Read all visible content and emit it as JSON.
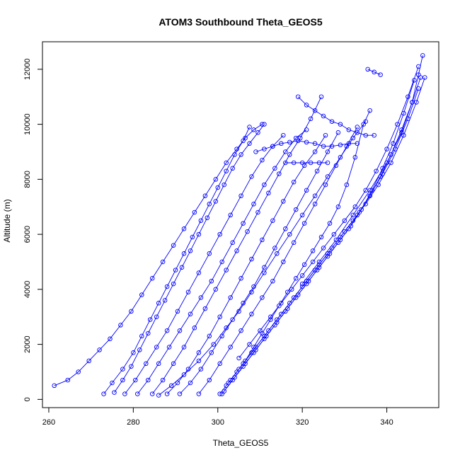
{
  "chart_data": {
    "type": "scatter",
    "title": "ATOM3 Southbound Theta_GEOS5",
    "xlabel": "Theta_GEOS5",
    "ylabel": "Altitude (m)",
    "xlim": [
      258.5,
      352.3
    ],
    "ylim": [
      -300,
      13000
    ],
    "xticks": [
      260,
      280,
      300,
      320,
      340
    ],
    "yticks": [
      0,
      2000,
      4000,
      6000,
      8000,
      10000,
      12000
    ],
    "grid": false,
    "legend": "none",
    "marker": "open-circle",
    "connect_points": true,
    "color": "#0000ff",
    "series": [
      {
        "x": [
          261.3,
          264.5,
          267.0,
          269.5,
          272.0,
          274.5,
          277.0,
          279.5,
          282.0,
          284.5,
          287.0,
          289.5,
          292.0,
          294.5,
          297.0,
          299.5,
          302.0,
          304.5,
          306.5,
          308.5,
          310.5
        ],
        "y": [
          500,
          700,
          1000,
          1400,
          1800,
          2200,
          2700,
          3200,
          3800,
          4400,
          5000,
          5600,
          6200,
          6800,
          7400,
          8000,
          8600,
          9100,
          9500,
          9800,
          10000
        ]
      },
      {
        "x": [
          273.0,
          275.0,
          277.5,
          280.0,
          282.0,
          284.0,
          286.0,
          288.0,
          290.0,
          292.0,
          294.0,
          296.0,
          298.0,
          300.0,
          302.0,
          304.0,
          306.0,
          307.5
        ],
        "y": [
          200,
          600,
          1100,
          1700,
          2300,
          2900,
          3500,
          4100,
          4700,
          5300,
          5900,
          6500,
          7100,
          7700,
          8300,
          8900,
          9400,
          9900
        ]
      },
      {
        "x": [
          275.5,
          277.5,
          279.5,
          281.5,
          283.5,
          285.5,
          287.5,
          289.5,
          291.5,
          293.5,
          295.5,
          297.5,
          299.5,
          301.5,
          303.5,
          305.5,
          307.5,
          309.5,
          311.0
        ],
        "y": [
          250,
          700,
          1200,
          1800,
          2400,
          3000,
          3600,
          4200,
          4800,
          5400,
          6000,
          6600,
          7200,
          7800,
          8400,
          8900,
          9300,
          9700,
          10000
        ]
      },
      {
        "x": [
          278.0,
          280.5,
          283.0,
          285.5,
          288.0,
          290.5,
          293.0,
          295.5,
          298.0,
          300.5,
          303.0,
          305.5,
          308.0,
          310.5,
          313.0,
          315.5
        ],
        "y": [
          200,
          700,
          1300,
          1900,
          2500,
          3200,
          3900,
          4600,
          5300,
          6000,
          6700,
          7400,
          8100,
          8700,
          9200,
          9600
        ]
      },
      {
        "x": [
          281.0,
          283.5,
          286.0,
          288.5,
          291.0,
          293.5,
          296.0,
          298.5,
          301.0,
          303.5,
          306.0,
          308.5,
          311.0,
          313.5,
          316.0,
          318.5,
          321.0
        ],
        "y": [
          200,
          700,
          1300,
          1900,
          2500,
          3100,
          3700,
          4300,
          5000,
          5700,
          6400,
          7100,
          7800,
          8400,
          9000,
          9500,
          9800
        ]
      },
      {
        "x": [
          284.5,
          287.0,
          289.5,
          292.0,
          294.5,
          297.0,
          299.5,
          302.0,
          304.5,
          307.0,
          309.5,
          312.0,
          314.5,
          317.0,
          319.5,
          322.0,
          324.5
        ],
        "y": [
          200,
          700,
          1300,
          1900,
          2600,
          3300,
          4000,
          4700,
          5400,
          6100,
          6800,
          7500,
          8200,
          8900,
          9500,
          10200,
          11000
        ]
      },
      {
        "x": [
          288.0,
          290.5,
          293.0,
          295.5,
          298.0,
          300.5,
          303.0,
          305.5,
          308.0,
          310.5,
          313.0,
          315.5,
          318.0,
          320.5,
          323.0,
          325.5
        ],
        "y": [
          200,
          600,
          1100,
          1700,
          2300,
          3000,
          3700,
          4400,
          5100,
          5800,
          6500,
          7200,
          7900,
          8500,
          9000,
          9600
        ]
      },
      {
        "x": [
          291.0,
          293.5,
          296.0,
          298.5,
          301.0,
          303.5,
          306.0,
          308.5,
          311.0,
          313.5,
          316.0,
          318.5,
          321.0,
          323.5,
          326.0,
          328.5
        ],
        "y": [
          200,
          600,
          1100,
          1700,
          2300,
          2900,
          3500,
          4100,
          4800,
          5500,
          6200,
          6900,
          7600,
          8300,
          9000,
          9700
        ]
      },
      {
        "x": [
          295.5,
          298.0,
          300.5,
          303.0,
          305.5,
          308.0,
          310.5,
          313.0,
          315.5,
          318.0,
          320.5,
          323.0,
          325.5,
          328.0,
          330.5,
          333.0
        ],
        "y": [
          200,
          700,
          1300,
          1900,
          2500,
          3100,
          3700,
          4300,
          5000,
          5700,
          6400,
          7100,
          7800,
          8500,
          9200,
          9900
        ]
      },
      {
        "x": [
          300.5,
          302.5,
          304.5,
          306.5,
          308.5,
          310.5,
          312.5,
          314.5,
          316.5,
          318.5,
          320.5,
          322.5,
          324.5,
          326.5,
          328.5,
          330.5,
          332.5,
          334.5,
          336.0
        ],
        "y": [
          200,
          600,
          1000,
          1400,
          1900,
          2400,
          2900,
          3400,
          3900,
          4400,
          4900,
          5400,
          5900,
          6400,
          7000,
          7800,
          8800,
          10000,
          10500
        ]
      },
      {
        "x": [
          301.0,
          303.5,
          306.0,
          308.5,
          311.0,
          313.5,
          316.0,
          318.5,
          321.0,
          323.5,
          326.0,
          328.5,
          331.0,
          333.5,
          336.0,
          338.5,
          341.0,
          343.5,
          346.0,
          348.0
        ],
        "y": [
          200,
          700,
          1200,
          1700,
          2200,
          2700,
          3200,
          3700,
          4200,
          4700,
          5200,
          5700,
          6200,
          6800,
          7400,
          8100,
          8900,
          9800,
          10800,
          11700
        ]
      },
      {
        "x": [
          301.5,
          304.0,
          306.5,
          309.0,
          311.5,
          314.0,
          316.5,
          319.0,
          321.5,
          324.0,
          326.5,
          329.0,
          331.5,
          334.0,
          336.5,
          339.0,
          341.5,
          344.0,
          346.5
        ],
        "y": [
          300,
          800,
          1300,
          1800,
          2300,
          2800,
          3300,
          3800,
          4300,
          4800,
          5300,
          5800,
          6300,
          6900,
          7600,
          8400,
          9300,
          10400,
          11600
        ]
      },
      {
        "x": [
          302.0,
          305.0,
          308.0,
          311.0,
          314.0,
          317.0,
          320.0,
          323.0,
          326.0,
          329.0,
          332.0,
          335.0,
          338.0,
          341.0,
          344.0,
          347.0,
          349.0
        ],
        "y": [
          500,
          1100,
          1700,
          2300,
          2900,
          3500,
          4100,
          4700,
          5300,
          5900,
          6500,
          7100,
          7800,
          8600,
          9600,
          10800,
          11700
        ]
      },
      {
        "x": [
          303.0,
          306.0,
          309.0,
          312.0,
          315.0,
          318.0,
          321.0,
          324.0,
          327.0,
          330.0,
          333.0,
          336.0,
          339.0,
          342.0,
          345.0,
          347.5
        ],
        "y": [
          700,
          1300,
          1900,
          2500,
          3100,
          3700,
          4300,
          4900,
          5500,
          6100,
          6700,
          7400,
          8200,
          9100,
          10200,
          11300
        ]
      },
      {
        "x": [
          305.0,
          307.5,
          310.0,
          312.5,
          315.0,
          317.5,
          320.0,
          322.5,
          325.0,
          327.5,
          330.0,
          332.5,
          335.0,
          337.5,
          340.0,
          342.5,
          345.0,
          347.5
        ],
        "y": [
          1500,
          2000,
          2500,
          3000,
          3500,
          4000,
          4500,
          5000,
          5500,
          6000,
          6500,
          7000,
          7600,
          8300,
          9100,
          10000,
          11000,
          12100
        ]
      },
      {
        "x": [
          320.0,
          324.0,
          328.0,
          332.0,
          336.0,
          340.0,
          343.5,
          346.0,
          347.5,
          348.5
        ],
        "y": [
          4200,
          5000,
          5800,
          6700,
          7600,
          8600,
          9700,
          10800,
          11800,
          12500
        ]
      },
      {
        "x": [
          286.0,
          289.0,
          292.0,
          295.5,
          299.0,
          302.0,
          305.0,
          308.0,
          311.0,
          314.0,
          317.0,
          320.0,
          323.0,
          326.0,
          329.0,
          332.0,
          335.0
        ],
        "y": [
          150,
          500,
          900,
          1400,
          2000,
          2600,
          3200,
          3900,
          4600,
          5300,
          6000,
          6700,
          7400,
          8100,
          8800,
          9500,
          10100
        ]
      },
      {
        "x": [
          309.0,
          311.0,
          313.0,
          315.0,
          317.0,
          319.0,
          321.0,
          323.0,
          325.0,
          327.0,
          329.0,
          331.0,
          333.0
        ],
        "y": [
          9000,
          9100,
          9200,
          9300,
          9350,
          9400,
          9350,
          9300,
          9200,
          9200,
          9250,
          9300,
          9300
        ]
      },
      {
        "x": [
          316.0,
          318.0,
          320.0,
          322.0,
          324.0,
          326.0
        ],
        "y": [
          8600,
          8600,
          8600,
          8600,
          8600,
          8600
        ]
      },
      {
        "x": [
          319.0,
          321.0,
          323.0,
          325.0,
          327.0,
          329.0,
          331.0,
          333.0,
          335.0,
          337.0
        ],
        "y": [
          11000,
          10700,
          10500,
          10300,
          10100,
          10000,
          9800,
          9700,
          9600,
          9600
        ]
      },
      {
        "x": [
          335.5,
          337.0,
          338.5
        ],
        "y": [
          12000,
          11900,
          11800
        ]
      }
    ]
  }
}
